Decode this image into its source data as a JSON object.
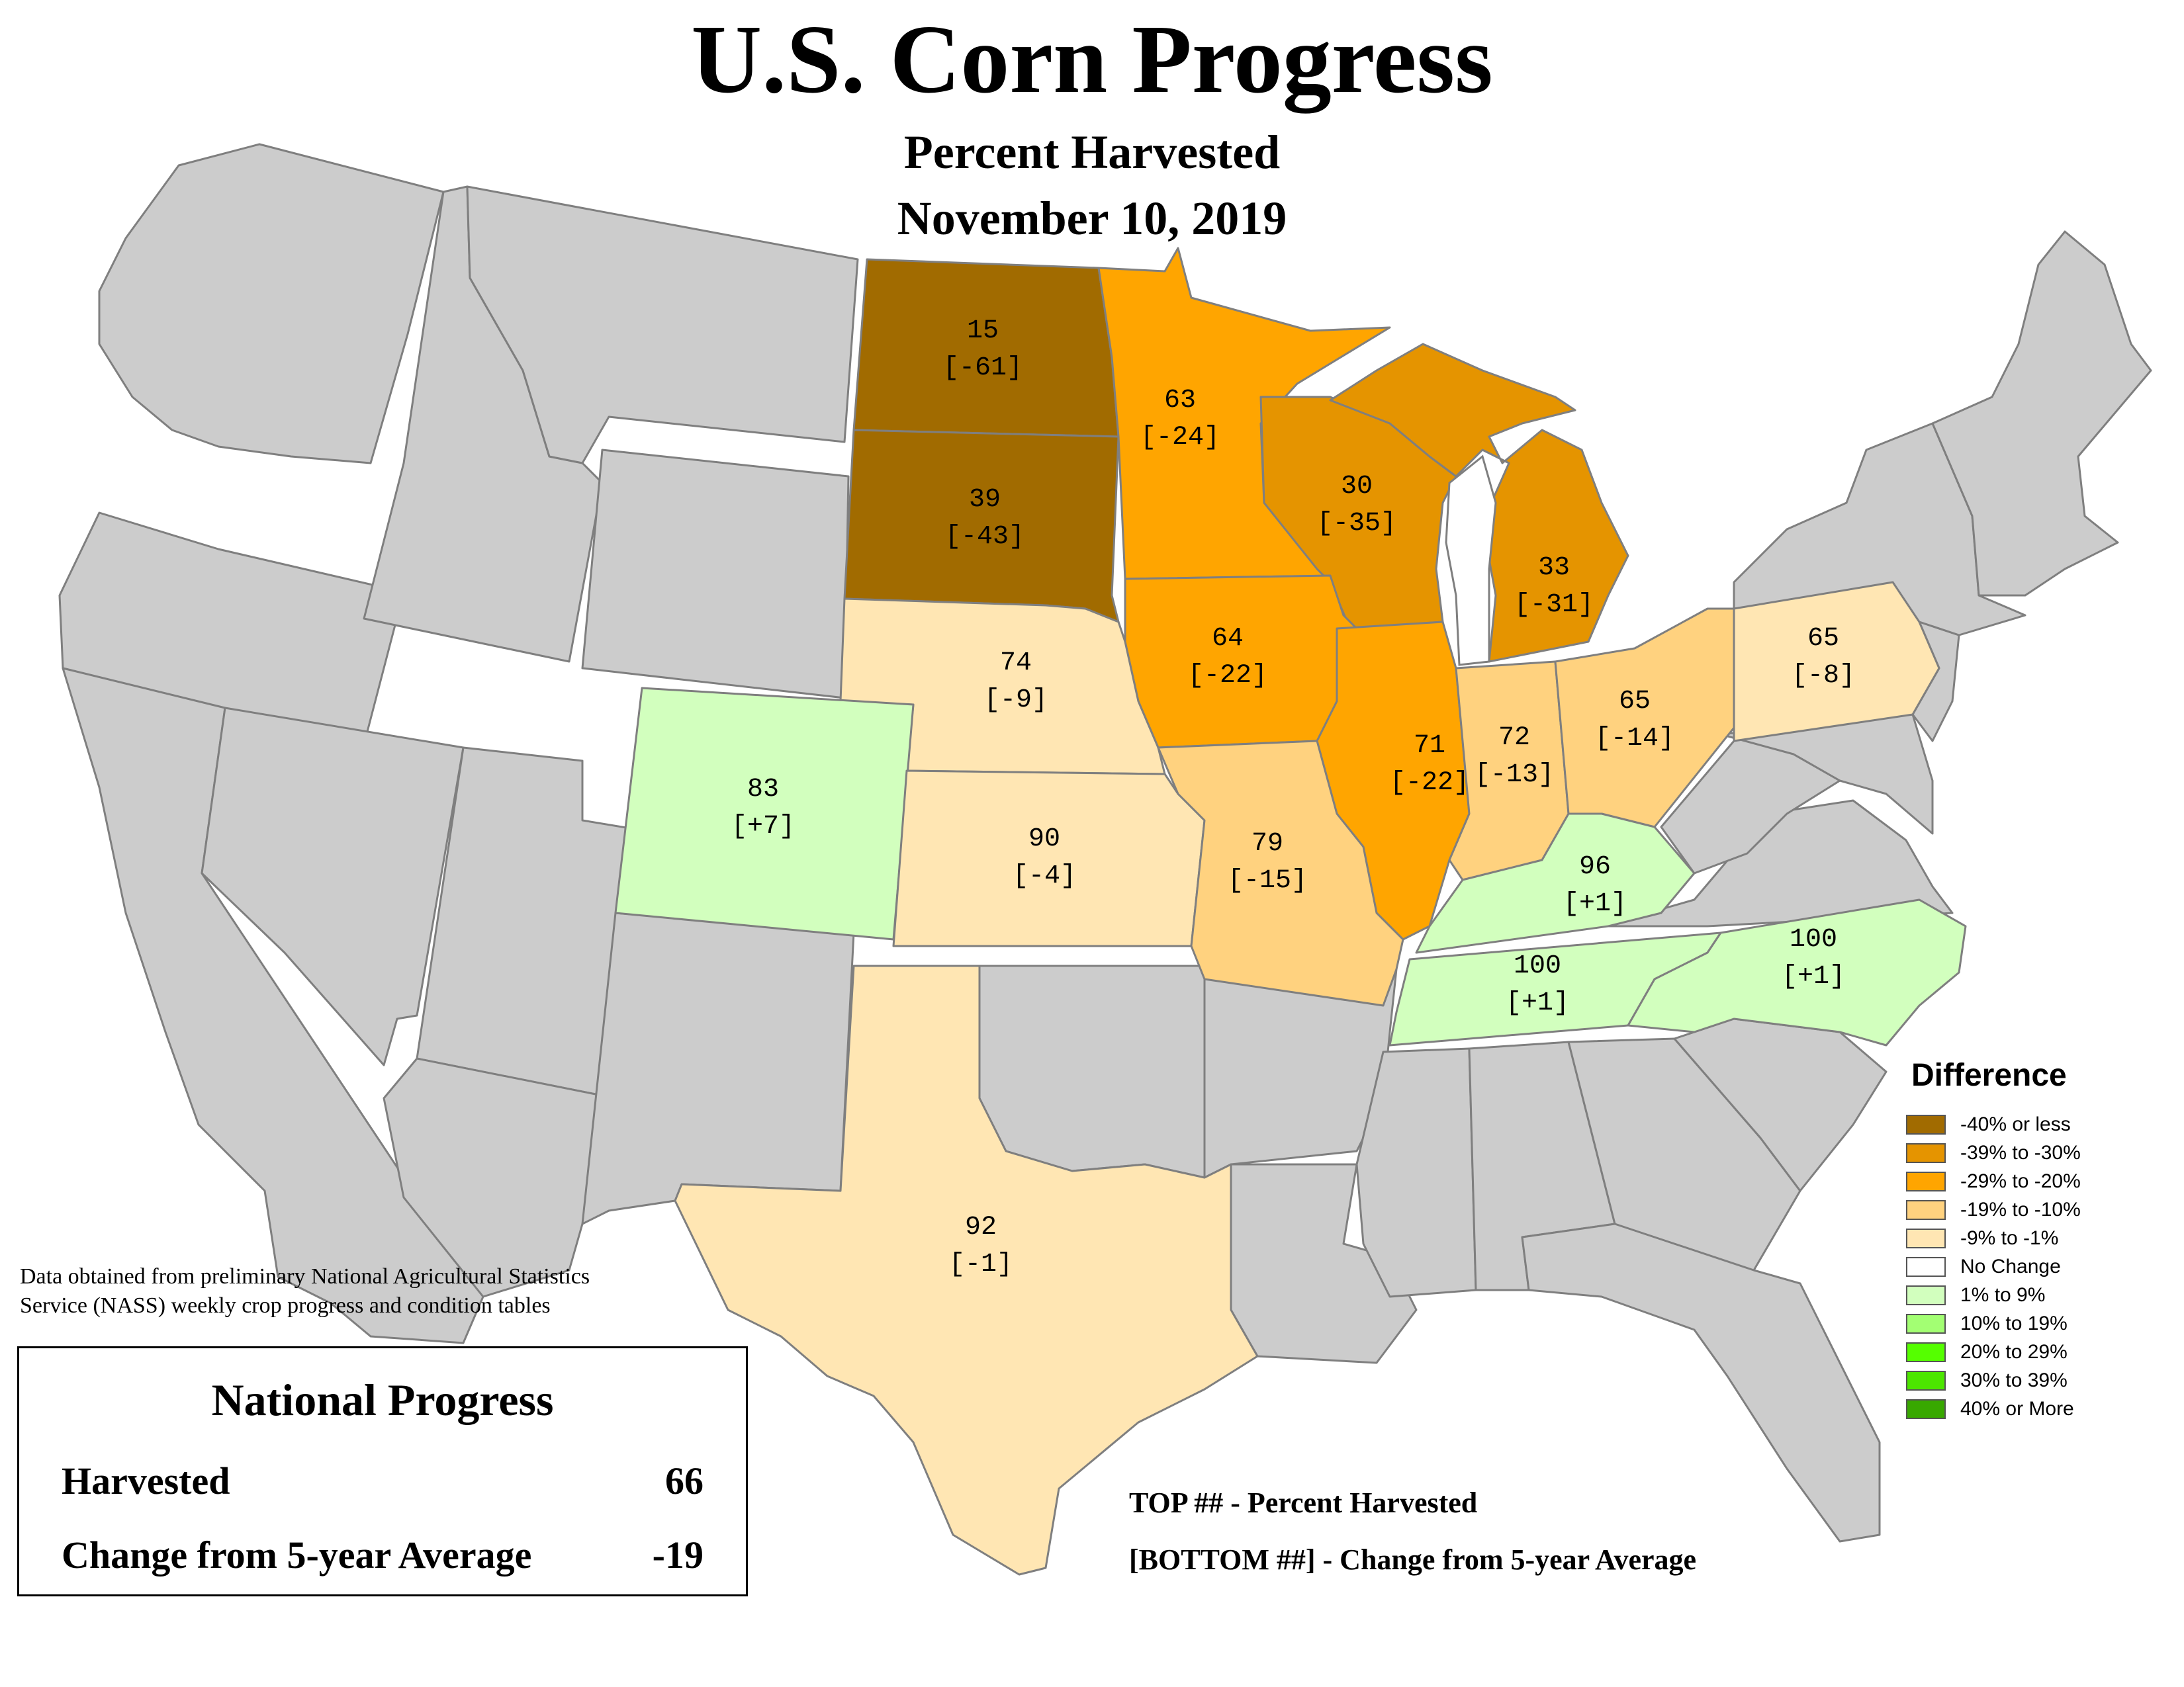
{
  "title": "U.S. Corn Progress",
  "subtitle": "Percent Harvested",
  "date": "November 10, 2019",
  "source_note": {
    "line1": "Data obtained from preliminary National Agricultural Statistics",
    "line2": "Service (NASS) weekly crop progress and condition tables"
  },
  "national": {
    "title": "National Progress",
    "harvested_label": "Harvested",
    "harvested_value": "66",
    "change_label": "Change from 5-year Average",
    "change_value": "-19"
  },
  "key": {
    "top": "TOP ## - Percent Harvested",
    "bottom": "[BOTTOM ##] - Change from 5-year Average"
  },
  "legend": {
    "title": "Difference",
    "items": [
      {
        "label": "-40% or less",
        "color": "#a16b00"
      },
      {
        "label": "-39% to -30%",
        "color": "#e59400"
      },
      {
        "label": "-29% to -20%",
        "color": "#ffa500"
      },
      {
        "label": "-19% to -10%",
        "color": "#ffd27f"
      },
      {
        "label": "-9% to -1%",
        "color": "#ffe6b3"
      },
      {
        "label": "No Change",
        "color": "#ffffff"
      },
      {
        "label": "1% to 9%",
        "color": "#d2ffbe"
      },
      {
        "label": "10% to 19%",
        "color": "#a3ff73"
      },
      {
        "label": "20% to 29%",
        "color": "#55ff00"
      },
      {
        "label": "30% to 39%",
        "color": "#4ce600"
      },
      {
        "label": "40% or More",
        "color": "#38a800"
      }
    ]
  },
  "states": [
    {
      "name": "North Dakota",
      "harvested": "15",
      "change": "[-61]",
      "color": "#a16b00"
    },
    {
      "name": "South Dakota",
      "harvested": "39",
      "change": "[-43]",
      "color": "#a16b00"
    },
    {
      "name": "Minnesota",
      "harvested": "63",
      "change": "[-24]",
      "color": "#ffa500"
    },
    {
      "name": "Wisconsin",
      "harvested": "30",
      "change": "[-35]",
      "color": "#e59400"
    },
    {
      "name": "Michigan",
      "harvested": "33",
      "change": "[-31]",
      "color": "#e59400"
    },
    {
      "name": "Iowa",
      "harvested": "64",
      "change": "[-22]",
      "color": "#ffa500"
    },
    {
      "name": "Nebraska",
      "harvested": "74",
      "change": "[-9]",
      "color": "#ffe6b3"
    },
    {
      "name": "Illinois",
      "harvested": "71",
      "change": "[-22]",
      "color": "#ffa500"
    },
    {
      "name": "Indiana",
      "harvested": "72",
      "change": "[-13]",
      "color": "#ffd27f"
    },
    {
      "name": "Ohio",
      "harvested": "65",
      "change": "[-14]",
      "color": "#ffd27f"
    },
    {
      "name": "Pennsylvania",
      "harvested": "65",
      "change": "[-8]",
      "color": "#ffe6b3"
    },
    {
      "name": "Colorado",
      "harvested": "83",
      "change": "[+7]",
      "color": "#d2ffbe"
    },
    {
      "name": "Kansas",
      "harvested": "90",
      "change": "[-4]",
      "color": "#ffe6b3"
    },
    {
      "name": "Missouri",
      "harvested": "79",
      "change": "[-15]",
      "color": "#ffd27f"
    },
    {
      "name": "Kentucky",
      "harvested": "96",
      "change": "[+1]",
      "color": "#d2ffbe"
    },
    {
      "name": "Tennessee",
      "harvested": "100",
      "change": "[+1]",
      "color": "#d2ffbe"
    },
    {
      "name": "North Carolina",
      "harvested": "100",
      "change": "[+1]",
      "color": "#d2ffbe"
    },
    {
      "name": "Texas",
      "harvested": "92",
      "change": "[-1]",
      "color": "#ffe6b3"
    }
  ]
}
